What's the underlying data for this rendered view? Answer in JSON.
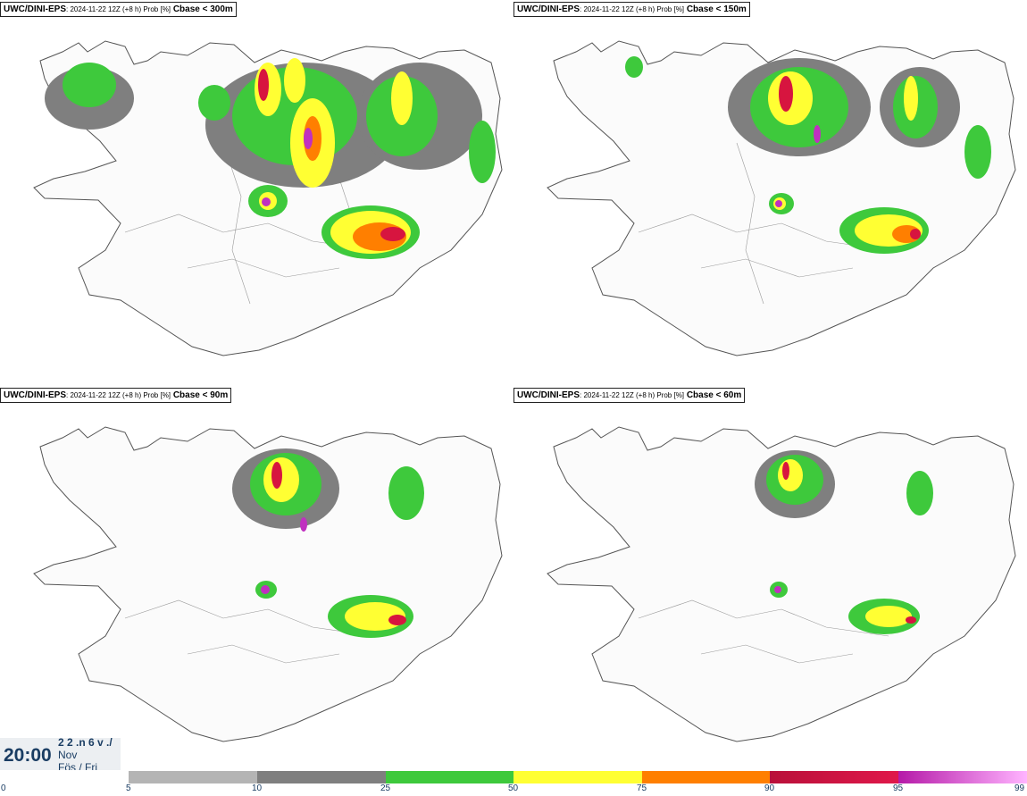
{
  "panels": [
    {
      "source": "UWC/DINI-EPS",
      "info": ": 2024-11-22 12Z (+8 h) Prob [%]",
      "threshold": "Cbase < 300m"
    },
    {
      "source": "UWC/DINI-EPS",
      "info": ": 2024-11-22 12Z (+8 h) Prob [%]",
      "threshold": "Cbase < 150m"
    },
    {
      "source": "UWC/DINI-EPS",
      "info": ": 2024-11-22 12Z (+8 h) Prob [%]",
      "threshold": "Cbase < 90m"
    },
    {
      "source": "UWC/DINI-EPS",
      "info": ": 2024-11-22 12Z (+8 h) Prob [%]",
      "threshold": "Cbase < 60m"
    }
  ],
  "time": {
    "clock": "20:00",
    "line1": "2 2 .n 6 v ./",
    "line2": "Nov",
    "line3": "Fös / Fri"
  },
  "legend": {
    "ticks": [
      "0",
      "5",
      "10",
      "25",
      "50",
      "75",
      "90",
      "95",
      "99"
    ],
    "colors": [
      "#ffffff",
      "#b4b4b4",
      "#7f7f7f",
      "#3ec93c",
      "#ffff33",
      "#ff7f00",
      "#d7153f",
      "#c030c0"
    ]
  }
}
